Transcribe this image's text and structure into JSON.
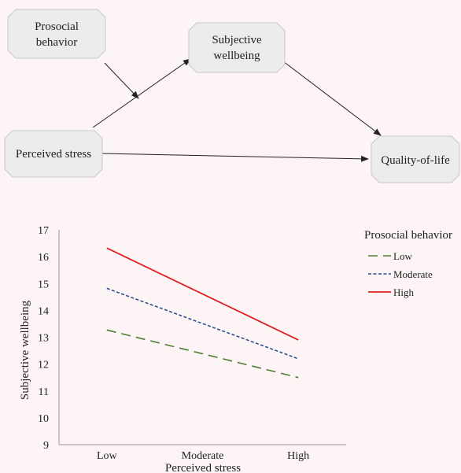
{
  "diagram": {
    "nodes": {
      "prosocial_line1": "Prosocial",
      "prosocial_line2": "behavior",
      "subjective_line1": "Subjective",
      "subjective_line2": "wellbeing",
      "stress": "Perceived stress",
      "qol": "Quality-of-life"
    },
    "node_fill": "#ececec",
    "node_stroke": "#c8c8c8"
  },
  "chart_data": {
    "type": "line",
    "categories": [
      "Low",
      "Moderate",
      "High"
    ],
    "xlabel": "Perceived stress",
    "ylabel": "Subjective wellbeing",
    "ylim": [
      9,
      17
    ],
    "yticks": [
      "9",
      "10",
      "11",
      "12",
      "13",
      "14",
      "15",
      "16",
      "17"
    ],
    "grid": false,
    "legend": {
      "title": "Prosocial behavior",
      "placement": "top-right"
    },
    "series": [
      {
        "name": "Low",
        "start": 13.27,
        "end": 11.5,
        "color": "#4e7c32",
        "dash": "12,7"
      },
      {
        "name": "Moderate",
        "start": 14.82,
        "end": 12.2,
        "color": "#2f4f8f",
        "dash": "4,2.5"
      },
      {
        "name": "High",
        "start": 16.32,
        "end": 12.9,
        "color": "#e02020",
        "dash": ""
      }
    ]
  }
}
